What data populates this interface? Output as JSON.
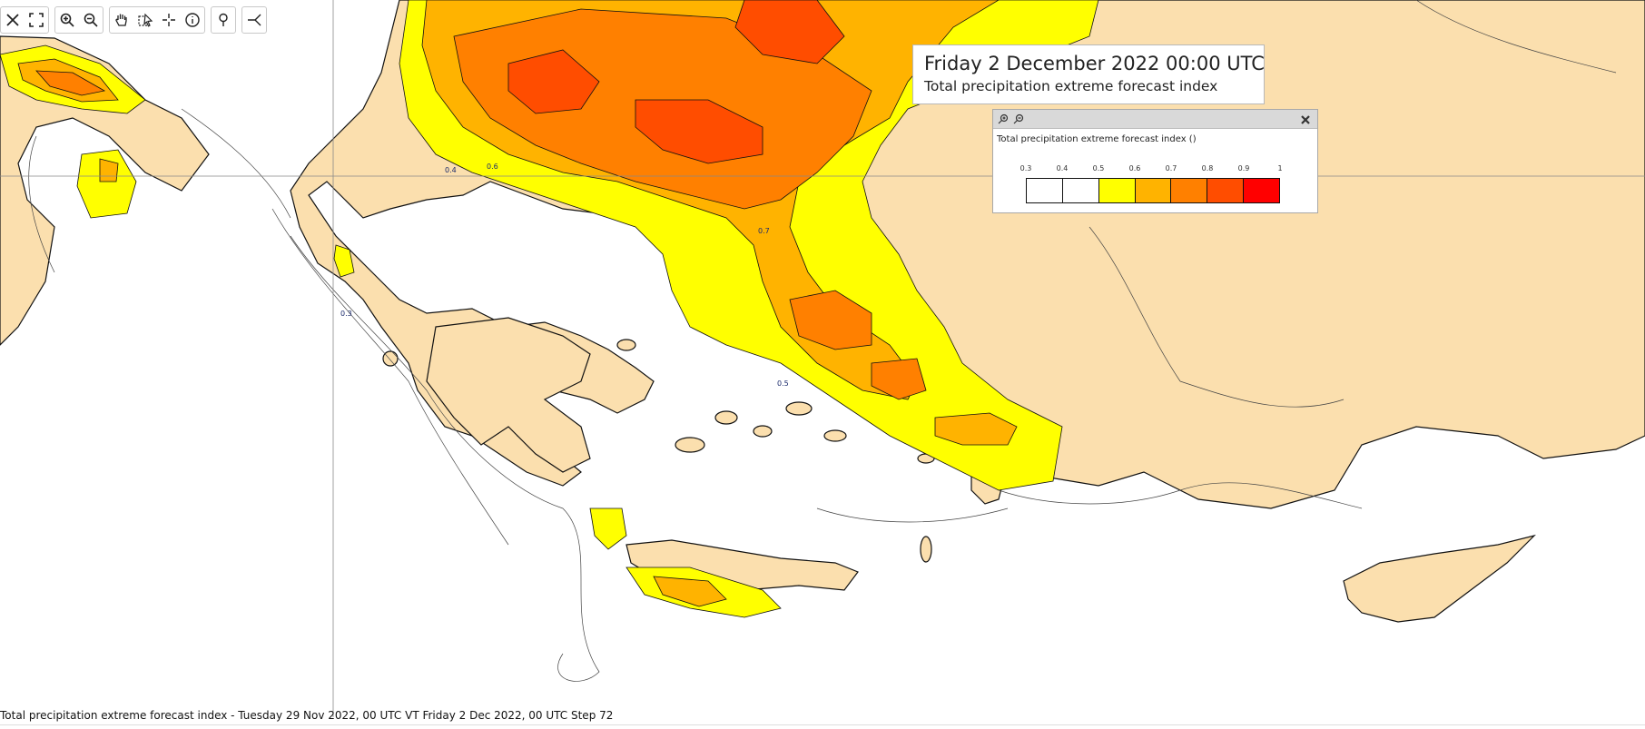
{
  "title": {
    "main": "Friday 2 December 2022 00:00 UTC",
    "sub": "Total precipitation extreme forecast index"
  },
  "legend": {
    "title": "Total precipitation extreme forecast index ()",
    "ticks": [
      "0.3",
      "0.4",
      "0.5",
      "0.6",
      "0.7",
      "0.8",
      "0.9",
      "1"
    ],
    "colors": [
      "#ffffff",
      "#ffffff",
      "#ffff00",
      "#ffb300",
      "#ff8000",
      "#ff4d00",
      "#ff0000"
    ]
  },
  "footer": {
    "caption": "Total precipitation extreme forecast index - Tuesday 29 Nov 2022, 00 UTC VT Friday 2 Dec 2022, 00 UTC Step 72"
  },
  "toolbar": {
    "groups": [
      [
        "close-icon",
        "fullscreen-icon"
      ],
      [
        "zoom-in-icon",
        "zoom-out-icon"
      ],
      [
        "pan-hand-icon",
        "select-area-icon",
        "crosshair-icon",
        "info-icon"
      ],
      [
        "location-pin-icon"
      ],
      [
        "measure-icon"
      ]
    ]
  },
  "map": {
    "land_color": "#fbdfae",
    "sea_color": "#ffffff",
    "contour_labels": [
      "0.3",
      "0.4",
      "0.5",
      "0.6",
      "0.7"
    ]
  }
}
